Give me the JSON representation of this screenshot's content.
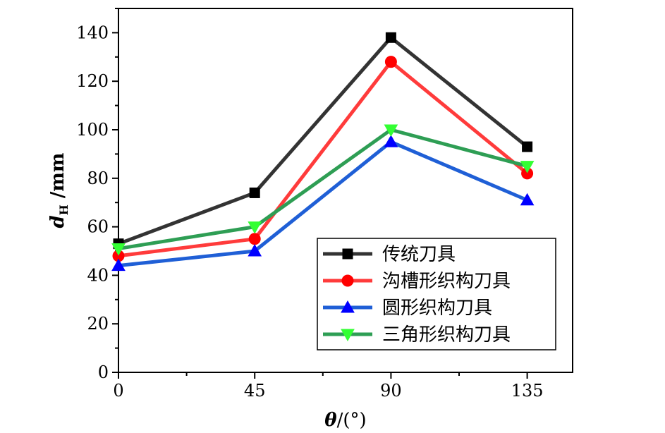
{
  "chart_data": {
    "type": "line",
    "x": [
      0,
      45,
      90,
      135
    ],
    "xlabel_symbol": "θ",
    "xlabel_unit": "/(°)",
    "ylabel_symbol": "d",
    "ylabel_sub": "H",
    "ylabel_unit": " /mm",
    "xlim": [
      0,
      150
    ],
    "ylim": [
      0,
      150
    ],
    "x_ticks": [
      0,
      45,
      90,
      135
    ],
    "y_ticks": [
      0,
      20,
      40,
      60,
      80,
      100,
      120,
      140
    ],
    "grid": false,
    "legend_position": "bottom-right",
    "series": [
      {
        "name": "传统刀具",
        "values": [
          53,
          74,
          138,
          93
        ],
        "color": "#333333",
        "marker_color": "#000000",
        "marker": "square"
      },
      {
        "name": "沟槽形织构刀具",
        "values": [
          48,
          55,
          128,
          82
        ],
        "color": "#ff3b3b",
        "marker_color": "#ff0000",
        "marker": "circle"
      },
      {
        "name": "圆形织构刀具",
        "values": [
          44,
          50,
          95,
          71
        ],
        "color": "#1f5fd6",
        "marker_color": "#0000ff",
        "marker": "triangle-up"
      },
      {
        "name": "三角形织构刀具",
        "values": [
          51,
          60,
          100,
          85
        ],
        "color": "#2e9e54",
        "marker_color": "#33ff33",
        "marker": "triangle-down"
      }
    ]
  }
}
